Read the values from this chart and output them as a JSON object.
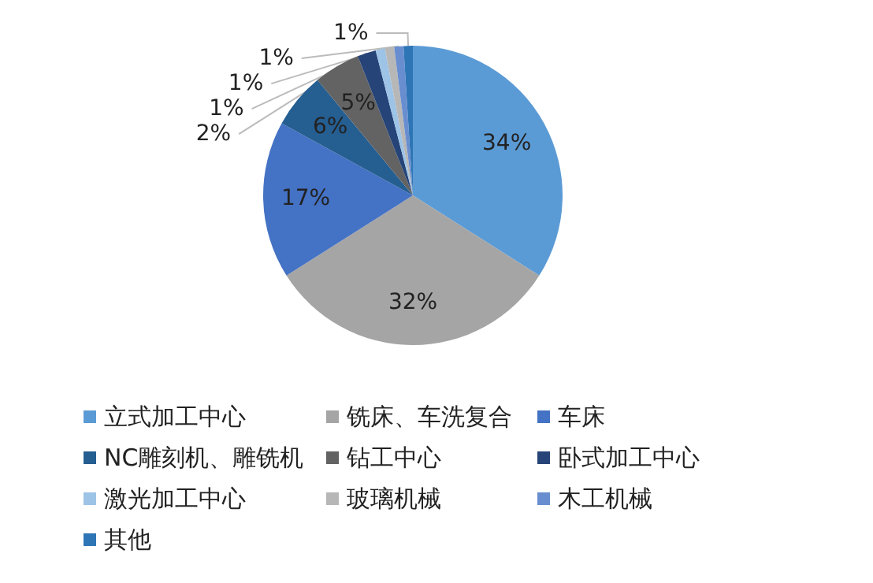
{
  "chart_data": {
    "type": "pie",
    "categories": [
      "立式加工中心",
      "铣床、车洗复合",
      "车床",
      "NC雕刻机、雕铣机",
      "钻工中心",
      "卧式加工中心",
      "激光加工中心",
      "玻璃机械",
      "木工机械",
      "其他"
    ],
    "values": [
      34,
      32,
      17,
      6,
      5,
      2,
      1,
      1,
      1,
      1
    ],
    "value_labels": [
      "34%",
      "32%",
      "17%",
      "6%",
      "5%",
      "2%",
      "1%",
      "1%",
      "1%",
      "1%"
    ],
    "colors": [
      "#5b9bd5",
      "#a5a5a5",
      "#4472c4",
      "#255e91",
      "#636363",
      "#264478",
      "#9dc3e6",
      "#b7b7b7",
      "#698ed0",
      "#2e75b6"
    ],
    "legend": "bottom"
  }
}
